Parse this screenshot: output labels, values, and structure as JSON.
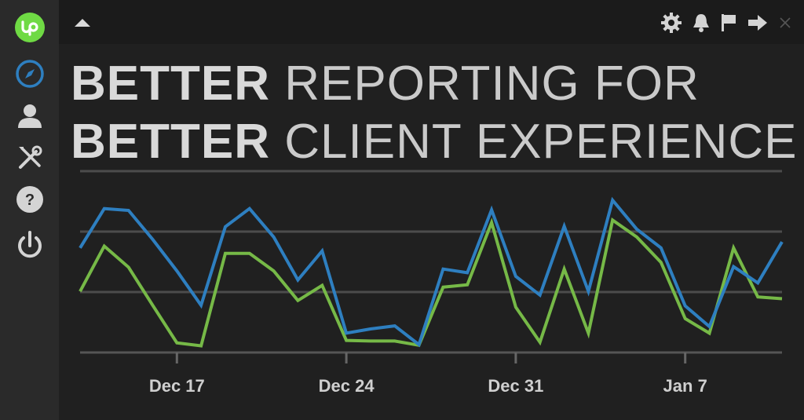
{
  "app": {
    "brand_color": "#6fda44",
    "sidebar_items": [
      {
        "name": "upwork-logo-icon"
      },
      {
        "name": "compass-icon"
      },
      {
        "name": "user-icon"
      },
      {
        "name": "tools-icon"
      },
      {
        "name": "help-icon"
      },
      {
        "name": "power-icon"
      }
    ],
    "top_actions": [
      "gear-icon",
      "bell-icon",
      "flag-icon",
      "arrow-right-icon",
      "close-icon"
    ]
  },
  "headline": {
    "line1_bold": "BETTER",
    "line1_light": "REPORTING FOR",
    "line2_bold": "BETTER",
    "line2_light": "CLIENT EXPERIENCE"
  },
  "chart_data": {
    "type": "line",
    "x_start": "Dec 13",
    "x_end": "Jan 11",
    "ticks": [
      "Dec 17",
      "Dec 24",
      "Dec 31",
      "Jan 7"
    ],
    "ylim": [
      0,
      3
    ],
    "gridlines": [
      1,
      2,
      3
    ],
    "grid": true,
    "colors": {
      "blue": "#2e7fc0",
      "green": "#76b947"
    },
    "series": [
      {
        "color": "blue",
        "values": [
          1.73,
          2.38,
          2.35,
          1.87,
          1.35,
          0.78,
          2.08,
          2.38,
          1.91,
          1.2,
          1.68,
          0.32,
          0.39,
          0.44,
          0.13,
          1.38,
          1.32,
          2.36,
          1.26,
          0.95,
          2.09,
          1.01,
          2.52,
          2.04,
          1.73,
          0.77,
          0.43,
          1.42,
          1.15,
          1.83
        ]
      },
      {
        "color": "green",
        "values": [
          1.01,
          1.76,
          1.41,
          0.78,
          0.16,
          0.11,
          1.64,
          1.64,
          1.35,
          0.86,
          1.11,
          0.2,
          0.19,
          0.19,
          0.12,
          1.08,
          1.12,
          2.15,
          0.75,
          0.17,
          1.38,
          0.32,
          2.19,
          1.91,
          1.49,
          0.56,
          0.32,
          1.73,
          0.92,
          0.89
        ]
      }
    ]
  }
}
